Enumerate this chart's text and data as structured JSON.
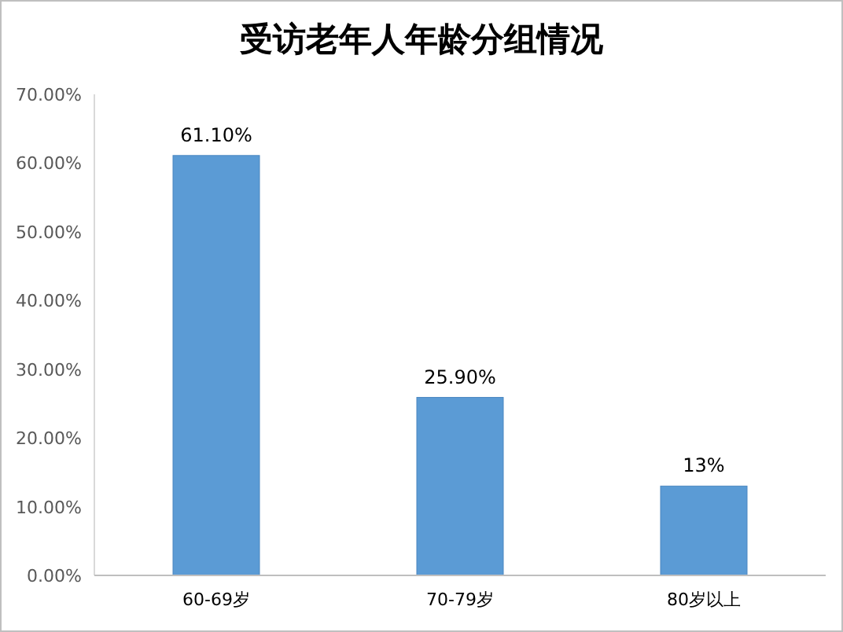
{
  "chart_data": {
    "type": "bar",
    "title": "受访老年人年龄分组情况",
    "categories": [
      "60-69岁",
      "70-79岁",
      "80岁以上"
    ],
    "values": [
      61.1,
      25.9,
      13
    ],
    "value_labels": [
      "61.10%",
      "25.90%",
      "13%"
    ],
    "color": "#5b9bd5",
    "ylim": [
      0,
      70
    ],
    "yticks": [
      {
        "value": 0,
        "label": "0.00%"
      },
      {
        "value": 10,
        "label": "10.00%"
      },
      {
        "value": 20,
        "label": "20.00%"
      },
      {
        "value": 30,
        "label": "30.00%"
      },
      {
        "value": 40,
        "label": "40.00%"
      },
      {
        "value": 50,
        "label": "50.00%"
      },
      {
        "value": 60,
        "label": "60.00%"
      },
      {
        "value": 70,
        "label": "70.00%"
      }
    ],
    "grid": false
  }
}
